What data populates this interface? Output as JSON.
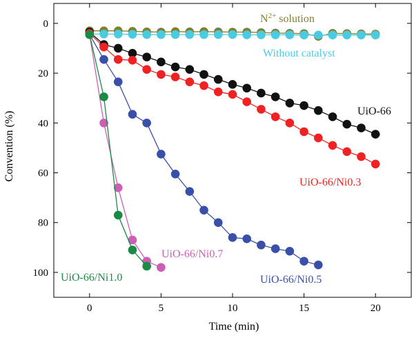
{
  "chart_data": {
    "type": "line",
    "xlabel": "Time (min)",
    "ylabel": "Convention (%)",
    "xlim": [
      -2.5,
      22.5
    ],
    "ylim": [
      110,
      -8
    ],
    "y_inverted": true,
    "x_ticks": [
      0,
      5,
      10,
      15,
      20
    ],
    "y_ticks": [
      0,
      20,
      40,
      60,
      80,
      100
    ],
    "grid": false,
    "series": [
      {
        "name": "N2+ solution",
        "label": {
          "main": "N",
          "sup": "2+",
          "rest": " solution"
        },
        "color": "#808033",
        "x": [
          0,
          1,
          2,
          3,
          4,
          5,
          6,
          7,
          8,
          9,
          10,
          11,
          12,
          13,
          14,
          15,
          16,
          17,
          18,
          19,
          20
        ],
        "y": [
          3,
          3,
          3,
          3.2,
          3.4,
          3.5,
          3.3,
          3.4,
          3.3,
          3.4,
          3.5,
          3.5,
          3.7,
          3.9,
          4,
          4.1,
          5.2,
          4,
          4.1,
          4.2,
          4.3
        ]
      },
      {
        "name": "Without catalyst",
        "color": "#4ccbe0",
        "x": [
          0,
          1,
          2,
          3,
          4,
          5,
          6,
          7,
          8,
          9,
          10,
          11,
          12,
          13,
          14,
          15,
          16,
          17,
          18,
          19,
          20
        ],
        "y": [
          4.3,
          4.3,
          4.3,
          4.4,
          4.5,
          4.5,
          4.5,
          4.5,
          4.5,
          4.5,
          4.5,
          4.6,
          4.6,
          4.6,
          4.6,
          4.7,
          4.7,
          4.7,
          4.7,
          4.7,
          4.7
        ]
      },
      {
        "name": "UiO-66",
        "color": "#111111",
        "x": [
          0,
          1,
          2,
          3,
          4,
          5,
          6,
          7,
          8,
          9,
          10,
          11,
          12,
          13,
          14,
          15,
          16,
          17,
          18,
          19,
          20
        ],
        "y": [
          3.5,
          8.5,
          10,
          12,
          13.5,
          15.5,
          17.5,
          18.5,
          20.5,
          22.5,
          24.5,
          26,
          28,
          29.5,
          32,
          33,
          35,
          37.5,
          40.5,
          42,
          44.5
        ]
      },
      {
        "name": "UiO-66/Ni0.3",
        "color": "#ee2222",
        "x": [
          0,
          1,
          2,
          3,
          4,
          5,
          6,
          7,
          8,
          9,
          10,
          11,
          12,
          13,
          14,
          15,
          16,
          17,
          18,
          19,
          20
        ],
        "y": [
          4,
          9.5,
          14.5,
          14.8,
          18.5,
          20.5,
          21.5,
          23.5,
          25,
          27.5,
          28.5,
          31.5,
          34.5,
          37.5,
          40,
          43.5,
          46,
          49,
          51.5,
          53.5,
          56.5
        ]
      },
      {
        "name": "UiO-66/Ni0.5",
        "color": "#3a4fa8",
        "x": [
          0,
          1,
          2,
          3,
          4,
          5,
          6,
          7,
          8,
          9,
          10,
          11,
          12,
          13,
          14,
          15,
          16
        ],
        "y": [
          4.5,
          14.5,
          23.5,
          36.5,
          40,
          52.5,
          60.5,
          67.5,
          75,
          80,
          86,
          86.5,
          89,
          90.5,
          91.5,
          95.5,
          97
        ]
      },
      {
        "name": "UiO-66/Ni0.7",
        "color": "#cc5fb5",
        "x": [
          0,
          1,
          2,
          3,
          4,
          5
        ],
        "y": [
          4.5,
          40,
          66,
          87,
          95.5,
          98
        ]
      },
      {
        "name": "UiO-66/Ni1.0",
        "color": "#1b8a45",
        "x": [
          0,
          1,
          2,
          3,
          4
        ],
        "y": [
          4.5,
          29.5,
          77,
          91,
          97.5
        ]
      }
    ]
  }
}
